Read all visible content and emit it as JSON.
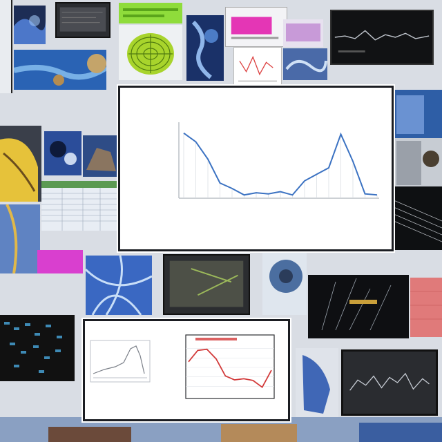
{
  "collage": {
    "description_tiles": [
      "blue-microscope",
      "monitor-dark",
      "green-label",
      "green-sphere",
      "blue-organism",
      "magenta-panel",
      "dark-waveform",
      "blue-stream",
      "yellow-organism",
      "blue-cells",
      "rock",
      "spreadsheet",
      "magenta-block",
      "blue-fibers",
      "green-monitor",
      "blue-cell-round",
      "dark-plants",
      "red-panel",
      "dark-cells-left",
      "blue-fabric",
      "dark-waveform-br"
    ]
  },
  "main_chart": {
    "title_line1": "",
    "title_line2": "",
    "y_ticks": [
      "",
      "",
      "",
      "",
      "",
      "",
      ""
    ],
    "x_ticks": [
      "",
      "",
      "",
      "",
      "",
      "",
      "",
      "",
      "",
      "",
      "",
      "",
      "",
      "",
      ""
    ],
    "xlabel": "",
    "line_color": "#3b72c2"
  },
  "chart_data": [
    {
      "type": "line",
      "title": "",
      "xlabel": "",
      "ylabel": "",
      "x": [
        1,
        2,
        3,
        4,
        5,
        6,
        7,
        8,
        9,
        10,
        11,
        12,
        13,
        14,
        15,
        16,
        17
      ],
      "values": [
        6.0,
        5.2,
        3.6,
        1.4,
        0.9,
        0.3,
        0.5,
        0.4,
        0.6,
        0.3,
        1.6,
        2.2,
        2.8,
        5.9,
        3.4,
        0.4,
        0.3
      ],
      "ylim": [
        0,
        7
      ],
      "grid": false
    },
    {
      "type": "line",
      "title": "",
      "xlabel": "",
      "ylabel": "",
      "x": [
        1,
        2,
        3,
        4,
        5,
        6,
        7,
        8,
        9,
        10
      ],
      "values": [
        6.0,
        8.0,
        8.2,
        6.5,
        3.5,
        2.8,
        3.0,
        2.7,
        1.5,
        4.5
      ],
      "ylim": [
        0,
        10
      ],
      "color": "#d23a3a",
      "grid": true
    }
  ]
}
